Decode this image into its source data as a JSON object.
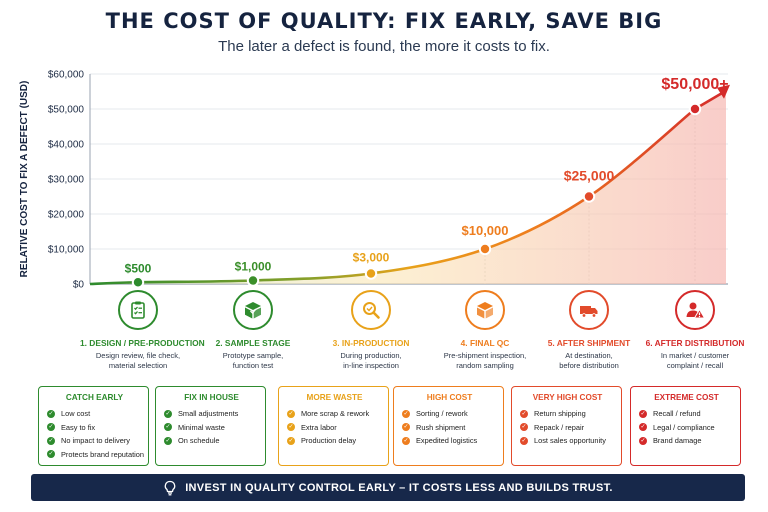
{
  "title": "THE COST OF QUALITY: FIX EARLY, SAVE BIG",
  "subtitle": "The later a defect is found, the more it costs to fix.",
  "chart_data": {
    "type": "line",
    "ylabel": "RELATIVE COST TO FIX A DEFECT (USD)",
    "ylim": [
      0,
      60000
    ],
    "y_ticks": [
      "$0",
      "$10,000",
      "$20,000",
      "$30,000",
      "$40,000",
      "$50,000",
      "$60,000"
    ],
    "grid": true,
    "categories": [
      "1. DESIGN / PRE-PRODUCTION",
      "2. SAMPLE STAGE",
      "3. IN-PRODUCTION",
      "4. FINAL QC",
      "5. AFTER SHIPMENT",
      "6. AFTER DISTRIBUTION"
    ],
    "values": [
      500,
      1000,
      3000,
      10000,
      25000,
      50000
    ],
    "data_labels": [
      "$500",
      "$1,000",
      "$3,000",
      "$10,000",
      "$25,000",
      "$50,000+"
    ],
    "colors": [
      "#2e8b2e",
      "#3b8f2a",
      "#e8a21a",
      "#ee7d1e",
      "#e24b2b",
      "#d42a2a"
    ]
  },
  "stages": [
    {
      "title": "1. DESIGN / PRE-PRODUCTION",
      "desc": [
        "Design review, file check,",
        "material selection"
      ],
      "icon": "clipboard-check-icon",
      "color": "#2e8b2e"
    },
    {
      "title": "2. SAMPLE STAGE",
      "desc": [
        "Prototype sample,",
        "function test"
      ],
      "icon": "package-icon",
      "color": "#2e8b2e"
    },
    {
      "title": "3. IN-PRODUCTION",
      "desc": [
        "During production,",
        "in-line inspection"
      ],
      "icon": "magnifier-icon",
      "color": "#e8a21a"
    },
    {
      "title": "4. FINAL QC",
      "desc": [
        "Pre-shipment inspection,",
        "random sampling"
      ],
      "icon": "box-icon",
      "color": "#ee7d1e"
    },
    {
      "title": "5. AFTER SHIPMENT",
      "desc": [
        "At destination,",
        "before distribution"
      ],
      "icon": "truck-icon",
      "color": "#e24b2b"
    },
    {
      "title": "6. AFTER DISTRIBUTION",
      "desc": [
        "In market / customer",
        "complaint / recall"
      ],
      "icon": "person-warning-icon",
      "color": "#d42a2a"
    }
  ],
  "cards": [
    {
      "title": "CATCH EARLY",
      "color": "#2e8b2e",
      "items": [
        "Low cost",
        "Easy to fix",
        "No impact to delivery",
        "Protects brand reputation"
      ]
    },
    {
      "title": "FIX IN HOUSE",
      "color": "#2e8b2e",
      "items": [
        "Small adjustments",
        "Minimal waste",
        "On schedule"
      ]
    },
    {
      "title": "MORE WASTE",
      "color": "#e8a21a",
      "items": [
        "More scrap & rework",
        "Extra labor",
        "Production delay"
      ]
    },
    {
      "title": "HIGH COST",
      "color": "#ee7d1e",
      "items": [
        "Sorting / rework",
        "Rush shipment",
        "Expedited logistics"
      ]
    },
    {
      "title": "VERY HIGH COST",
      "color": "#e24b2b",
      "items": [
        "Return shipping",
        "Repack / repair",
        "Lost sales opportunity"
      ]
    },
    {
      "title": "EXTREME COST",
      "color": "#d42a2a",
      "items": [
        "Recall / refund",
        "Legal / compliance",
        "Brand damage"
      ]
    }
  ],
  "banner": {
    "text": "INVEST IN QUALITY CONTROL EARLY – IT COSTS LESS AND BUILDS TRUST.",
    "icon": "lightbulb-icon"
  }
}
